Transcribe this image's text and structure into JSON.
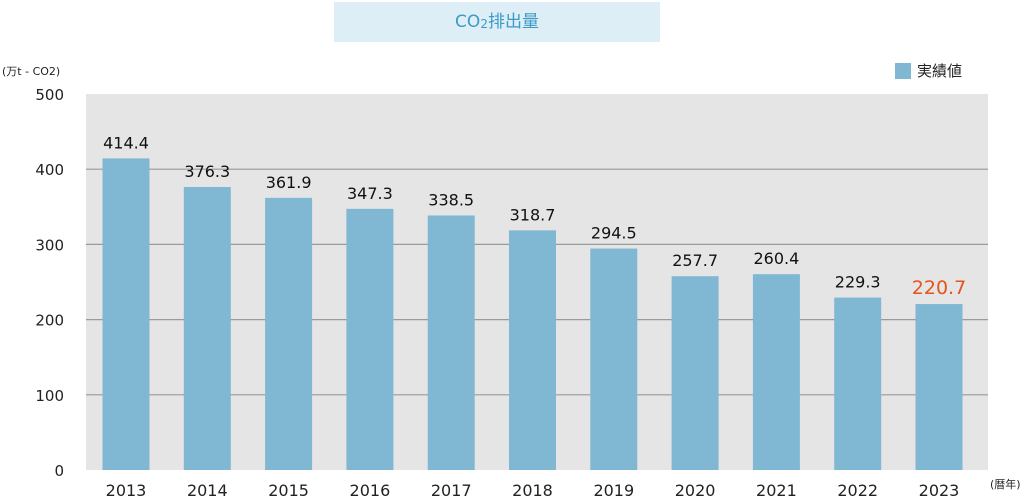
{
  "title": {
    "text": "CO",
    "sub": "2",
    "suffix": "排出量"
  },
  "y_unit": "(万t - CO2)",
  "x_unit": "(暦年)",
  "legend": {
    "label": "実績値",
    "color": "#80b8d4"
  },
  "highlight_color": "#e5541a",
  "chart_data": {
    "type": "bar",
    "title": "CO2排出量",
    "xlabel": "(暦年)",
    "ylabel": "(万t - CO2)",
    "ylim": [
      0,
      500
    ],
    "yticks": [
      0,
      100,
      200,
      300,
      400,
      500
    ],
    "grid": true,
    "legend_position": "top-right",
    "categories": [
      "2013",
      "2014",
      "2015",
      "2016",
      "2017",
      "2018",
      "2019",
      "2020",
      "2021",
      "2022",
      "2023"
    ],
    "series": [
      {
        "name": "実績値",
        "values": [
          414.4,
          376.3,
          361.9,
          347.3,
          338.5,
          318.7,
          294.5,
          257.7,
          260.4,
          229.3,
          220.7
        ]
      }
    ],
    "value_labels": [
      "414.4",
      "376.3",
      "361.9",
      "347.3",
      "338.5",
      "318.7",
      "294.5",
      "257.7",
      "260.4",
      "229.3",
      "220.7"
    ],
    "highlighted_category": "2023"
  }
}
